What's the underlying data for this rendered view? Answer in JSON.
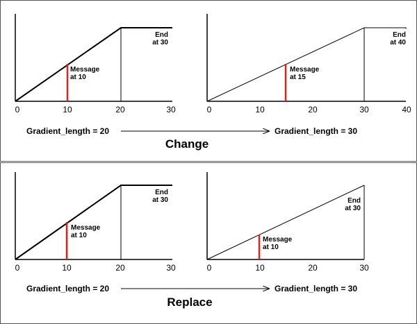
{
  "panels": [
    {
      "id": "change",
      "title": "Change",
      "left_gradient_label": "Gradient_length = 20",
      "right_gradient_label": "Gradient_length = 30",
      "graphs": [
        {
          "id": "change-left",
          "ticks": [
            "0",
            "10",
            "20",
            "30"
          ],
          "message_value": "10",
          "end_value": "30",
          "message_label": [
            "Message",
            "at 10"
          ],
          "end_label": [
            "End",
            "at 30"
          ]
        },
        {
          "id": "change-right",
          "ticks": [
            "0",
            "10",
            "20",
            "30",
            "40"
          ],
          "message_value": "15",
          "end_value": "40",
          "message_label": [
            "Message",
            "at 15"
          ],
          "end_label": [
            "End",
            "at 40"
          ]
        }
      ]
    },
    {
      "id": "replace",
      "title": "Replace",
      "left_gradient_label": "Gradient_length = 20",
      "right_gradient_label": "Gradient_length = 30",
      "graphs": [
        {
          "id": "replace-left",
          "ticks": [
            "0",
            "10",
            "20",
            "30"
          ],
          "message_value": "10",
          "end_value": "30",
          "message_label": [
            "Message",
            "at 10"
          ],
          "end_label": [
            "End",
            "at 30"
          ]
        },
        {
          "id": "replace-right",
          "ticks": [
            "0",
            "10",
            "20",
            "30"
          ],
          "message_value": "10",
          "end_value": "30",
          "message_label": [
            "Message",
            "at 10"
          ],
          "end_label": [
            "End",
            "at 30"
          ]
        }
      ]
    }
  ],
  "colors": {
    "message_line": "#e0201b",
    "ink": "#000000",
    "frame": "#555555"
  }
}
